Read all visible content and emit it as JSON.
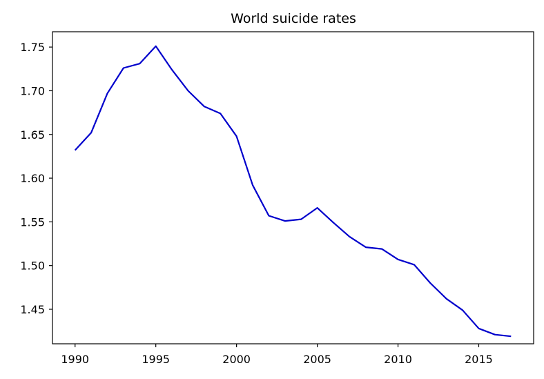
{
  "chart_data": {
    "type": "line",
    "title": "World suicide rates",
    "xlabel": "",
    "ylabel": "",
    "xlim": [
      1988.6,
      2018.4
    ],
    "ylim": [
      1.4105,
      1.7675
    ],
    "grid": false,
    "x_ticks": [
      1990,
      1995,
      2000,
      2005,
      2010,
      2015
    ],
    "y_ticks": [
      1.45,
      1.5,
      1.55,
      1.6,
      1.65,
      1.7,
      1.75
    ],
    "y_tick_labels": [
      "1.45",
      "1.50",
      "1.55",
      "1.60",
      "1.65",
      "1.70",
      "1.75"
    ],
    "series": [
      {
        "color": "#0000cc",
        "x": [
          1990,
          1991,
          1992,
          1993,
          1994,
          1995,
          1996,
          1997,
          1998,
          1999,
          2000,
          2001,
          2002,
          2003,
          2004,
          2005,
          2006,
          2007,
          2008,
          2009,
          2010,
          2011,
          2012,
          2013,
          2014,
          2015,
          2016,
          2017
        ],
        "values": [
          1.632,
          1.652,
          1.697,
          1.726,
          1.731,
          1.751,
          1.724,
          1.7,
          1.682,
          1.674,
          1.648,
          1.592,
          1.557,
          1.551,
          1.553,
          1.566,
          1.549,
          1.533,
          1.521,
          1.519,
          1.507,
          1.501,
          1.48,
          1.462,
          1.449,
          1.428,
          1.421,
          1.419
        ]
      }
    ]
  }
}
